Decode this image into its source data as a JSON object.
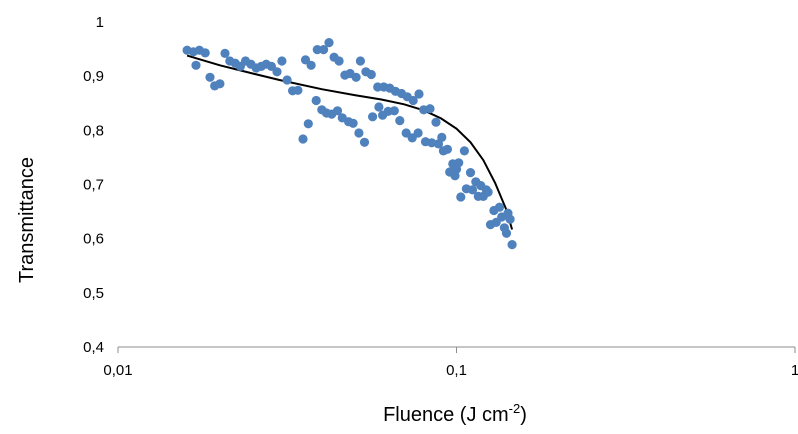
{
  "chart_data": {
    "type": "scatter",
    "title": "",
    "xlabel": "Fluence (J cm",
    "xlabel_sup": "-2",
    "xlabel_tail": ")",
    "ylabel": "Transmittance",
    "x_scale": "log",
    "xlim": [
      0.01,
      1
    ],
    "ylim": [
      0.4,
      1
    ],
    "x_ticks": [
      "0,01",
      "0,1",
      "1"
    ],
    "y_ticks": [
      "0,4",
      "0,5",
      "0,6",
      "0,7",
      "0,8",
      "0,9",
      "1"
    ],
    "grid": false,
    "legend": "none",
    "marker_color": "#4f81bd",
    "line_color": "#000000",
    "series": [
      {
        "kind": "scatter",
        "points": [
          [
            0.016,
            0.948
          ],
          [
            0.0167,
            0.945
          ],
          [
            0.017,
            0.92
          ],
          [
            0.0174,
            0.948
          ],
          [
            0.0181,
            0.943
          ],
          [
            0.0187,
            0.898
          ],
          [
            0.0193,
            0.882
          ],
          [
            0.02,
            0.886
          ],
          [
            0.0207,
            0.942
          ],
          [
            0.0214,
            0.928
          ],
          [
            0.0222,
            0.924
          ],
          [
            0.023,
            0.918
          ],
          [
            0.0238,
            0.928
          ],
          [
            0.0247,
            0.922
          ],
          [
            0.0256,
            0.915
          ],
          [
            0.0265,
            0.918
          ],
          [
            0.0274,
            0.922
          ],
          [
            0.0284,
            0.918
          ],
          [
            0.0295,
            0.908
          ],
          [
            0.0305,
            0.928
          ],
          [
            0.0316,
            0.893
          ],
          [
            0.0328,
            0.873
          ],
          [
            0.034,
            0.874
          ],
          [
            0.0352,
            0.784
          ],
          [
            0.0358,
            0.93
          ],
          [
            0.0365,
            0.812
          ],
          [
            0.0372,
            0.92
          ],
          [
            0.0385,
            0.855
          ],
          [
            0.0388,
            0.949
          ],
          [
            0.04,
            0.838
          ],
          [
            0.0405,
            0.949
          ],
          [
            0.0413,
            0.832
          ],
          [
            0.042,
            0.962
          ],
          [
            0.0428,
            0.83
          ],
          [
            0.0435,
            0.935
          ],
          [
            0.0445,
            0.836
          ],
          [
            0.045,
            0.928
          ],
          [
            0.046,
            0.823
          ],
          [
            0.0468,
            0.902
          ],
          [
            0.048,
            0.816
          ],
          [
            0.0485,
            0.905
          ],
          [
            0.0495,
            0.813
          ],
          [
            0.0505,
            0.898
          ],
          [
            0.0515,
            0.795
          ],
          [
            0.052,
            0.928
          ],
          [
            0.0535,
            0.778
          ],
          [
            0.054,
            0.908
          ],
          [
            0.056,
            0.903
          ],
          [
            0.0565,
            0.825
          ],
          [
            0.0585,
            0.88
          ],
          [
            0.059,
            0.843
          ],
          [
            0.0605,
            0.828
          ],
          [
            0.061,
            0.88
          ],
          [
            0.0628,
            0.835
          ],
          [
            0.0635,
            0.878
          ],
          [
            0.0655,
            0.836
          ],
          [
            0.066,
            0.872
          ],
          [
            0.068,
            0.818
          ],
          [
            0.0688,
            0.868
          ],
          [
            0.071,
            0.795
          ],
          [
            0.0715,
            0.862
          ],
          [
            0.074,
            0.786
          ],
          [
            0.0745,
            0.855
          ],
          [
            0.077,
            0.795
          ],
          [
            0.0775,
            0.867
          ],
          [
            0.08,
            0.838
          ],
          [
            0.081,
            0.779
          ],
          [
            0.0835,
            0.84
          ],
          [
            0.0845,
            0.777
          ],
          [
            0.087,
            0.815
          ],
          [
            0.0885,
            0.775
          ],
          [
            0.0905,
            0.787
          ],
          [
            0.0915,
            0.762
          ],
          [
            0.094,
            0.765
          ],
          [
            0.0955,
            0.723
          ],
          [
            0.0975,
            0.738
          ],
          [
            0.099,
            0.716
          ],
          [
            0.1,
            0.728
          ],
          [
            0.1015,
            0.74
          ],
          [
            0.103,
            0.677
          ],
          [
            0.1055,
            0.762
          ],
          [
            0.107,
            0.692
          ],
          [
            0.11,
            0.722
          ],
          [
            0.1115,
            0.69
          ],
          [
            0.114,
            0.705
          ],
          [
            0.116,
            0.678
          ],
          [
            0.118,
            0.698
          ],
          [
            0.12,
            0.678
          ],
          [
            0.1225,
            0.69
          ],
          [
            0.124,
            0.686
          ],
          [
            0.126,
            0.626
          ],
          [
            0.129,
            0.652
          ],
          [
            0.131,
            0.63
          ],
          [
            0.134,
            0.658
          ],
          [
            0.136,
            0.64
          ],
          [
            0.1385,
            0.62
          ],
          [
            0.1405,
            0.61
          ],
          [
            0.142,
            0.647
          ],
          [
            0.144,
            0.636
          ],
          [
            0.146,
            0.589
          ]
        ]
      },
      {
        "kind": "line",
        "points": [
          [
            0.016,
            0.938
          ],
          [
            0.02,
            0.92
          ],
          [
            0.025,
            0.905
          ],
          [
            0.03,
            0.893
          ],
          [
            0.04,
            0.876
          ],
          [
            0.05,
            0.865
          ],
          [
            0.06,
            0.857
          ],
          [
            0.07,
            0.848
          ],
          [
            0.08,
            0.837
          ],
          [
            0.09,
            0.822
          ],
          [
            0.1,
            0.803
          ],
          [
            0.11,
            0.778
          ],
          [
            0.12,
            0.745
          ],
          [
            0.13,
            0.703
          ],
          [
            0.14,
            0.655
          ],
          [
            0.146,
            0.617
          ]
        ]
      }
    ]
  }
}
